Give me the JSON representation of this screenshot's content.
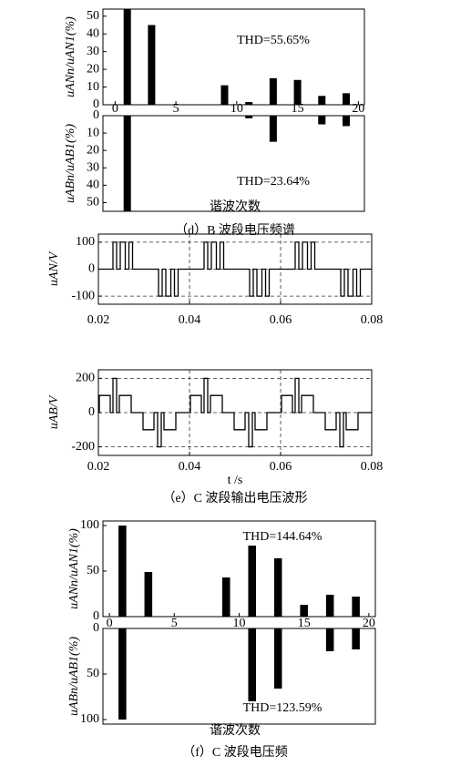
{
  "captions": [
    "（d）B 波段电压频谱",
    "（e）C 波段输出电压波形",
    "（f）C 波段电压频"
  ],
  "chart_data": [
    {
      "type": "bar",
      "ylabel": "uANn/uAN1(%)",
      "annotation": "THD=55.65%",
      "color": "#000000",
      "x": [
        1,
        3,
        9,
        11,
        13,
        15,
        17,
        19
      ],
      "values": [
        54,
        45,
        11,
        1.5,
        15,
        14,
        5,
        6.5
      ],
      "xlim": [
        -1,
        20.5
      ],
      "xticks": [
        0,
        5,
        10,
        15,
        20
      ],
      "ylim": [
        0,
        54
      ],
      "yticks": [
        0,
        10,
        20,
        30,
        40,
        50
      ]
    },
    {
      "type": "bar",
      "ylabel": "uABn/uAB1(%)",
      "annotation": "THD=23.64%",
      "xlabel": "谐波次数",
      "color": "#000000",
      "inverted": true,
      "x": [
        1,
        11,
        13,
        17,
        19
      ],
      "values": [
        55,
        1.5,
        15,
        5,
        6
      ],
      "xlim": [
        -1,
        20.5
      ],
      "ylim": [
        0,
        55
      ],
      "yticks": [
        0,
        10,
        20,
        30,
        40,
        50
      ]
    },
    {
      "type": "line",
      "ylabel": "uAN/V",
      "color": "#000000",
      "grid": true,
      "x": [
        0.02,
        0.0232,
        0.0232,
        0.024,
        0.024,
        0.0248,
        0.0248,
        0.0259,
        0.0259,
        0.0267,
        0.0267,
        0.0275,
        0.0275,
        0.0332,
        0.0332,
        0.034,
        0.034,
        0.0348,
        0.0348,
        0.0359,
        0.0359,
        0.0367,
        0.0367,
        0.0375,
        0.0375,
        0.0432,
        0.0432,
        0.044,
        0.044,
        0.0448,
        0.0448,
        0.0459,
        0.0459,
        0.0467,
        0.0467,
        0.0475,
        0.0475,
        0.0532,
        0.0532,
        0.054,
        0.054,
        0.0548,
        0.0548,
        0.0559,
        0.0559,
        0.0567,
        0.0567,
        0.0575,
        0.0575,
        0.0632,
        0.0632,
        0.064,
        0.064,
        0.0648,
        0.0648,
        0.0659,
        0.0659,
        0.0667,
        0.0667,
        0.0675,
        0.0675,
        0.0732,
        0.0732,
        0.074,
        0.074,
        0.0748,
        0.0748,
        0.0759,
        0.0759,
        0.0767,
        0.0767,
        0.0775,
        0.0775,
        0.08
      ],
      "values": [
        0,
        0,
        100,
        100,
        0,
        0,
        100,
        100,
        0,
        0,
        100,
        100,
        0,
        0,
        -100,
        -100,
        0,
        0,
        -100,
        -100,
        0,
        0,
        -100,
        -100,
        0,
        0,
        100,
        100,
        0,
        0,
        100,
        100,
        0,
        0,
        100,
        100,
        0,
        0,
        -100,
        -100,
        0,
        0,
        -100,
        -100,
        0,
        0,
        -100,
        -100,
        0,
        0,
        100,
        100,
        0,
        0,
        100,
        100,
        0,
        0,
        100,
        100,
        0,
        0,
        -100,
        -100,
        0,
        0,
        -100,
        -100,
        0,
        0,
        -100,
        -100,
        0,
        0
      ],
      "xlim": [
        0.02,
        0.08
      ],
      "xticks": [
        0.02,
        0.04,
        0.06,
        0.08
      ],
      "ylim": [
        -130,
        130
      ],
      "yticks": [
        -100,
        0,
        100
      ]
    },
    {
      "type": "line",
      "ylabel": "uAB/V",
      "xlabel": "t /s",
      "color": "#000000",
      "grid": true,
      "x": [
        0.02,
        0.0202,
        0.0202,
        0.0226,
        0.0226,
        0.0232,
        0.0232,
        0.024,
        0.024,
        0.0246,
        0.0246,
        0.0272,
        0.0272,
        0.0298,
        0.0298,
        0.0322,
        0.0322,
        0.033,
        0.033,
        0.0338,
        0.0338,
        0.0344,
        0.0344,
        0.037,
        0.037,
        0.0402,
        0.0402,
        0.0426,
        0.0426,
        0.0432,
        0.0432,
        0.044,
        0.044,
        0.0446,
        0.0446,
        0.0472,
        0.0472,
        0.0498,
        0.0498,
        0.0522,
        0.0522,
        0.053,
        0.053,
        0.0538,
        0.0538,
        0.0544,
        0.0544,
        0.057,
        0.057,
        0.0602,
        0.0602,
        0.0626,
        0.0626,
        0.0632,
        0.0632,
        0.064,
        0.064,
        0.0646,
        0.0646,
        0.0672,
        0.0672,
        0.0698,
        0.0698,
        0.0722,
        0.0722,
        0.073,
        0.073,
        0.0738,
        0.0738,
        0.0744,
        0.0744,
        0.077,
        0.077,
        0.08
      ],
      "values": [
        0,
        0,
        100,
        100,
        0,
        0,
        200,
        200,
        0,
        0,
        100,
        100,
        0,
        0,
        -100,
        -100,
        0,
        0,
        -200,
        -200,
        0,
        0,
        -100,
        -100,
        0,
        0,
        100,
        100,
        0,
        0,
        200,
        200,
        0,
        0,
        100,
        100,
        0,
        0,
        -100,
        -100,
        0,
        0,
        -200,
        -200,
        0,
        0,
        -100,
        -100,
        0,
        0,
        100,
        100,
        0,
        0,
        200,
        200,
        0,
        0,
        100,
        100,
        0,
        0,
        -100,
        -100,
        0,
        0,
        -200,
        -200,
        0,
        0,
        -100,
        -100,
        0,
        0
      ],
      "xlim": [
        0.02,
        0.08
      ],
      "xticks": [
        0.02,
        0.04,
        0.06,
        0.08
      ],
      "ylim": [
        -250,
        250
      ],
      "yticks": [
        -200,
        0,
        200
      ]
    },
    {
      "type": "bar",
      "ylabel": "uANn/uAN1(%)",
      "annotation": "THD=144.64%",
      "color": "#000000",
      "x": [
        1,
        3,
        9,
        11,
        13,
        15,
        17,
        19
      ],
      "values": [
        100,
        49,
        43,
        78,
        64,
        13,
        24,
        22
      ],
      "xlim": [
        -0.5,
        20.5
      ],
      "xticks": [
        0,
        5,
        10,
        15,
        20
      ],
      "ylim": [
        0,
        105
      ],
      "yticks": [
        0,
        50,
        100
      ]
    },
    {
      "type": "bar",
      "ylabel": "uABn/uAB1(%)",
      "annotation": "THD=123.59%",
      "xlabel": "谐波次数",
      "color": "#000000",
      "inverted": true,
      "x": [
        1,
        11,
        13,
        17,
        19
      ],
      "values": [
        100,
        80,
        66,
        25,
        23
      ],
      "xlim": [
        -0.5,
        20.5
      ],
      "ylim": [
        0,
        105
      ],
      "yticks": [
        0,
        50,
        100
      ]
    }
  ]
}
